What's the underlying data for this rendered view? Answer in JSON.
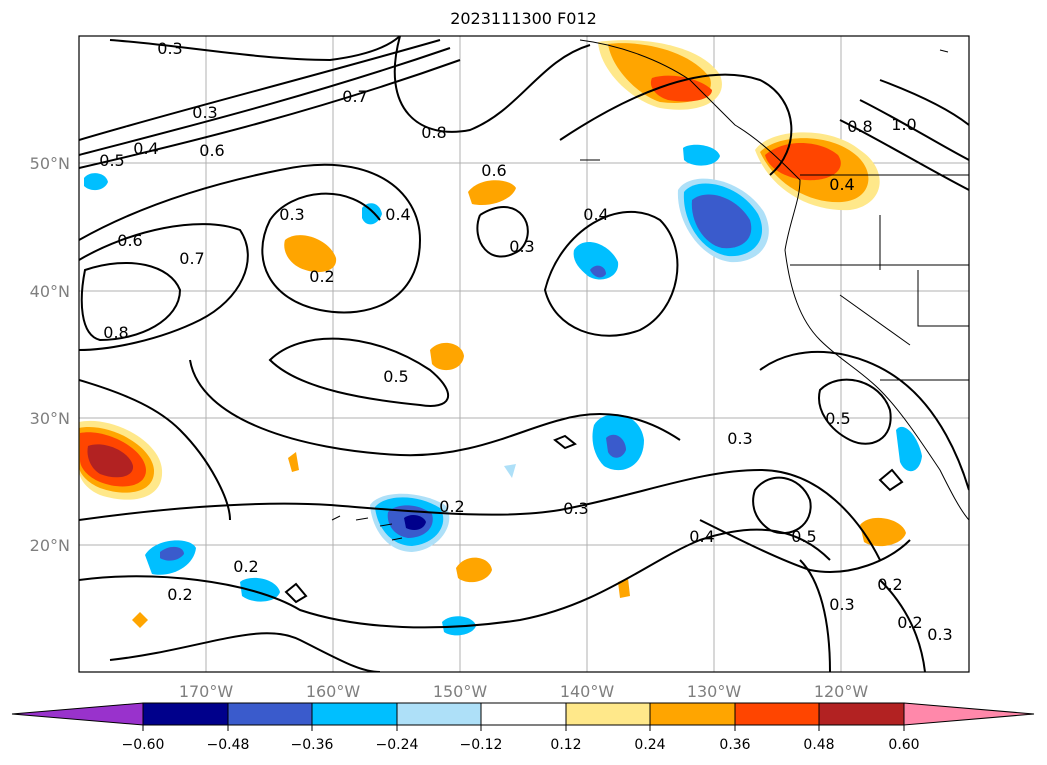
{
  "title": "2023111300 F012",
  "map": {
    "lat_ticks": [
      "20°N",
      "30°N",
      "40°N",
      "50°N"
    ],
    "lon_ticks": [
      "170°W",
      "160°W",
      "150°W",
      "140°W",
      "130°W",
      "120°W"
    ],
    "contour_labels": [
      "0.3",
      "0.3",
      "0.5",
      "0.4",
      "0.6",
      "0.7",
      "0.8",
      "0.6",
      "0.3",
      "0.4",
      "0.6",
      "0.7",
      "0.8",
      "0.3",
      "0.2",
      "0.5",
      "0.4",
      "0.2",
      "0.2",
      "0.2",
      "0.3",
      "0.4",
      "0.5",
      "0.3",
      "0.5",
      "0.3",
      "0.2",
      "0.2",
      "0.3",
      "0.4",
      "1.0",
      "0.8"
    ],
    "colors": {
      "strong_neg": "#9932cc",
      "neg_060": "#00008b",
      "neg_048": "#3a5bcc",
      "neg_036": "#00bfff",
      "neg_024": "#aee0f8",
      "neutral": "#ffffff",
      "pos_012": "#ffe88a",
      "pos_024": "#ffa500",
      "pos_036": "#ff4500",
      "pos_048": "#b22222",
      "strong_pos": "#ff88aa"
    }
  },
  "colorbar": {
    "ticks": [
      "−0.60",
      "−0.48",
      "−0.36",
      "−0.24",
      "−0.12",
      "0.12",
      "0.24",
      "0.36",
      "0.48",
      "0.60"
    ],
    "colors": [
      "#9932cc",
      "#00008b",
      "#3a5bcc",
      "#00bfff",
      "#aee0f8",
      "#ffffff",
      "#ffe88a",
      "#ffa500",
      "#ff4500",
      "#b22222",
      "#ff88aa"
    ]
  }
}
